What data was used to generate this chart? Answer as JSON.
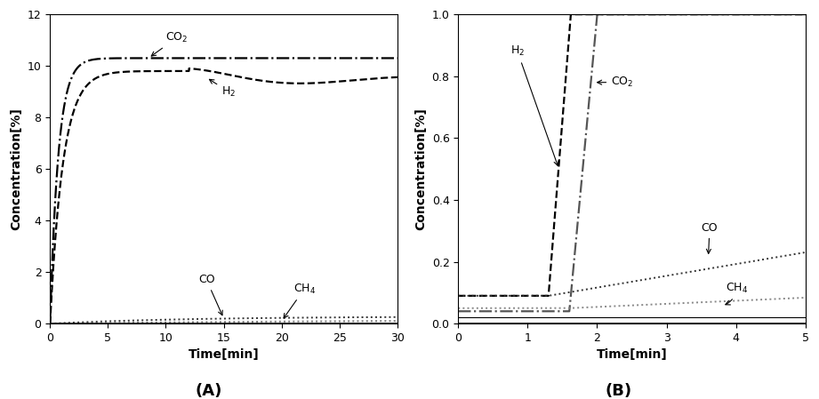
{
  "panel_A": {
    "title": "(A)",
    "xlabel": "Time[min]",
    "ylabel": "Concentration[%]",
    "xlim": [
      0,
      30
    ],
    "ylim": [
      0,
      12
    ],
    "yticks": [
      0,
      2,
      4,
      6,
      8,
      10,
      12
    ],
    "xticks": [
      0,
      5,
      10,
      15,
      20,
      25,
      30
    ]
  },
  "panel_B": {
    "title": "(B)",
    "xlabel": "Time[min]",
    "ylabel": "Concentration[%]",
    "xlim": [
      0,
      5
    ],
    "ylim": [
      0,
      1.0
    ],
    "yticks": [
      0.0,
      0.2,
      0.4,
      0.6,
      0.8,
      1.0
    ],
    "xticks": [
      0,
      1,
      2,
      3,
      4,
      5
    ]
  }
}
